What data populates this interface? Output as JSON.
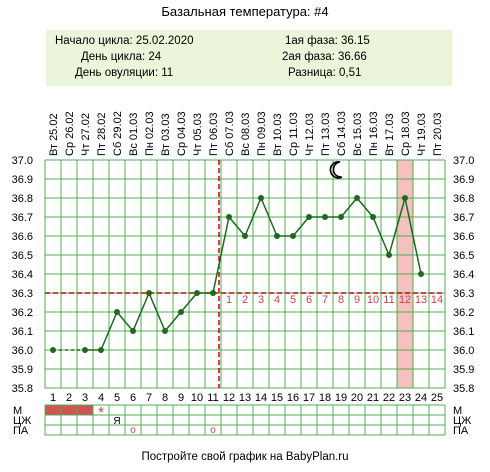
{
  "title": "Базальная температура: #4",
  "info": {
    "cycle_start": "Начало цикла: 25.02.2020",
    "cycle_day": "День цикла: 24",
    "ovulation_day": "День овуляции: 11",
    "phase1": "1ая фаза: 36.15",
    "phase2": "2ая фаза: 36.66",
    "difference": "Разница: 0,51"
  },
  "footer": "Постройте свой график на BabyPlan.ru",
  "colors": {
    "line": "#1a6b1a",
    "grid": "#55aa55",
    "coverline": "#cc0000",
    "highlight": "#f5c0c0",
    "info_bg": "#ebf5d9",
    "luteal_labels": "#cc4444",
    "mens_fill": "#cc5555"
  },
  "icons": {
    "moon": "crescent-moon-icon",
    "star": "star-icon"
  },
  "rows": {
    "labels": [
      "М",
      "ЦЖ",
      "ПА"
    ],
    "mens_days": [
      1,
      2,
      3
    ],
    "star_day": 4,
    "star_symbol": "*",
    "tszh_day": 5,
    "tszh_symbol": "Я",
    "pa_days": [
      6,
      11
    ],
    "pa_symbol": "o"
  },
  "chart_data": {
    "type": "line",
    "x": [
      1,
      2,
      3,
      4,
      5,
      6,
      7,
      8,
      9,
      10,
      11,
      12,
      13,
      14,
      15,
      16,
      17,
      18,
      19,
      20,
      21,
      22,
      23,
      24,
      25
    ],
    "dates": [
      "Вт 25.02",
      "Ср 26.02",
      "Чт 27.02",
      "Пт 28.02",
      "Сб 29.02",
      "Вс 01.03",
      "Пн 02.03",
      "Вт 03.03",
      "Ср 04.03",
      "Чт 05.03",
      "Пт 06.03",
      "Сб 07.03",
      "Вс 08.03",
      "Пн 09.03",
      "Вт 10.03",
      "Ср 11.03",
      "Чт 12.03",
      "Пт 13.03",
      "Сб 14.03",
      "Вс 15.03",
      "Пн 16.03",
      "Вт 17.03",
      "Ср 18.03",
      "Чт 19.03",
      "Пт 20.03"
    ],
    "values": [
      36.0,
      null,
      36.0,
      36.0,
      36.2,
      36.1,
      36.3,
      36.1,
      36.2,
      36.3,
      36.3,
      36.7,
      36.6,
      36.8,
      36.6,
      36.6,
      36.7,
      36.7,
      36.7,
      36.8,
      36.7,
      36.5,
      36.8,
      36.4,
      null
    ],
    "dashed_segments": [
      [
        1,
        3
      ]
    ],
    "ylim": [
      35.8,
      37.0
    ],
    "yticks": [
      "35.8",
      "35.9",
      "36.0",
      "36.1",
      "36.2",
      "36.3",
      "36.4",
      "36.5",
      "36.6",
      "36.7",
      "36.8",
      "36.9",
      "37.0"
    ],
    "coverline": 36.3,
    "ovulation_line_day": 11,
    "highlight_day": 23,
    "luteal_days": [
      "1",
      "2",
      "3",
      "4",
      "5",
      "6",
      "7",
      "8",
      "9",
      "10",
      "11",
      "12",
      "13",
      "14"
    ],
    "luteal_start_day": 12,
    "moon_day": 19,
    "grid": true
  }
}
